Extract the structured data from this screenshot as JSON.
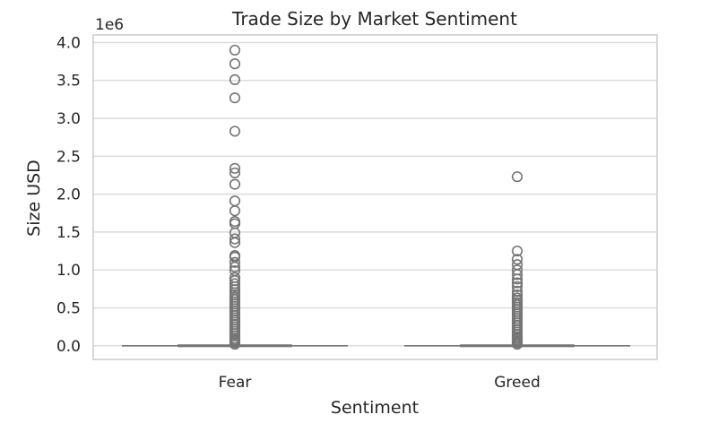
{
  "chart_data": {
    "type": "box",
    "title": "Trade Size by Market Sentiment",
    "xlabel": "Sentiment",
    "ylabel": "Size USD",
    "y_offset_label": "1e6",
    "ylim": [
      -0.18,
      4.1
    ],
    "y_ticks": [
      0.0,
      0.5,
      1.0,
      1.5,
      2.0,
      2.5,
      3.0,
      3.5,
      4.0
    ],
    "y_tick_labels": [
      "0.0",
      "0.5",
      "1.0",
      "1.5",
      "2.0",
      "2.5",
      "3.0",
      "3.5",
      "4.0"
    ],
    "grid": true,
    "categories": [
      "Fear",
      "Greed"
    ],
    "series": [
      {
        "category": "Fear",
        "q1": 0.0,
        "median": 0.0,
        "q3": 0.0,
        "whisker_low": 0.0,
        "whisker_high": 0.0,
        "fliers": [
          3.9,
          3.72,
          3.51,
          3.27,
          2.83,
          2.34,
          2.28,
          2.13,
          1.91,
          1.78,
          1.64,
          1.61,
          1.49,
          1.41,
          1.36,
          1.19,
          1.17,
          1.1,
          1.04,
          0.99,
          0.9,
          0.86,
          0.82,
          0.78,
          0.74,
          0.7,
          0.67,
          0.64,
          0.61,
          0.58,
          0.55,
          0.52,
          0.49,
          0.46,
          0.43,
          0.4,
          0.37,
          0.34,
          0.31,
          0.28,
          0.25,
          0.22,
          0.19,
          0.16,
          0.13,
          0.1,
          0.08,
          0.06,
          0.04,
          0.02
        ]
      },
      {
        "category": "Greed",
        "q1": 0.0,
        "median": 0.0,
        "q3": 0.0,
        "whisker_low": 0.0,
        "whisker_high": 0.0,
        "fliers": [
          2.23,
          1.25,
          1.14,
          1.07,
          1.0,
          0.94,
          0.88,
          0.83,
          0.78,
          0.72,
          0.67,
          0.63,
          0.6,
          0.57,
          0.54,
          0.51,
          0.48,
          0.45,
          0.42,
          0.39,
          0.36,
          0.33,
          0.3,
          0.27,
          0.24,
          0.21,
          0.18,
          0.15,
          0.12,
          0.1,
          0.08,
          0.06,
          0.04,
          0.02
        ]
      }
    ],
    "colors": {
      "box": "#757575",
      "grid": "#dcdcdc",
      "frame": "#cccccc",
      "text": "#262626"
    }
  }
}
